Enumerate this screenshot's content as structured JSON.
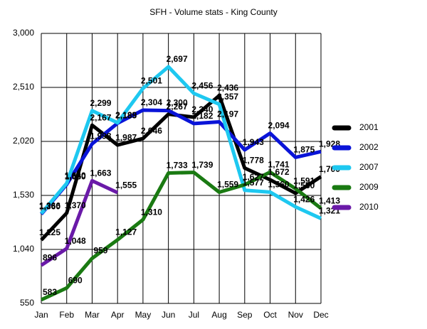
{
  "chart_data": {
    "type": "line",
    "title": "SFH - Volume stats - King County",
    "categories": [
      "Jan",
      "Feb",
      "Mar",
      "Apr",
      "May",
      "Jun",
      "Jul",
      "Aug",
      "Sep",
      "Oct",
      "Nov",
      "Dec"
    ],
    "ylim": [
      550,
      3000
    ],
    "yticks": [
      550,
      {
        "value": 1040,
        "label": "1,040"
      },
      {
        "value": 1530,
        "label": "1,530"
      },
      {
        "value": 2020,
        "label": "2,020"
      },
      {
        "value": 2510,
        "label": "2,510"
      },
      {
        "value": 3000,
        "label": "3,000"
      }
    ],
    "grid": true,
    "legend": "right",
    "series": [
      {
        "name": "2001",
        "color": "#000000",
        "values": [
          1125,
          1370,
          2167,
          1987,
          2046,
          2267,
          2240,
          2436,
          1778,
          1672,
          1550,
          1700
        ],
        "value_labels": [
          "1,125",
          "1,370",
          "2,167",
          "1,987",
          "2,046",
          "2,267",
          "2,240",
          "2,436",
          "1,778",
          "1,672",
          "1,550",
          "1,700"
        ]
      },
      {
        "name": "2002",
        "color": "#0a14d8",
        "values": [
          1360,
          1630,
          1998,
          2185,
          2304,
          2300,
          2182,
          2197,
          1943,
          2094,
          1875,
          1928
        ],
        "value_labels": [
          "1,360",
          "1,630",
          "1,998",
          "2,185",
          "2,304",
          "2,300",
          "2,182",
          "2,197",
          "1,943",
          "2,094",
          "1,875",
          "1,928"
        ]
      },
      {
        "name": "2007",
        "color": "#1ec8f0",
        "values": [
          1366,
          1640,
          2299,
          2189,
          2501,
          2697,
          2456,
          2357,
          1577,
          1560,
          1426,
          1321
        ],
        "value_labels": [
          "1,366",
          "1,640",
          "2,299",
          "2,189",
          "2,501",
          "2,697",
          "2,456",
          "2,357",
          "1,577",
          "1,560",
          "1,426",
          "1,321"
        ]
      },
      {
        "name": "2009",
        "color": "#1a7a12",
        "values": [
          583,
          690,
          959,
          1127,
          1310,
          1733,
          1739,
          1559,
          1627,
          1741,
          1591,
          1413
        ],
        "value_labels": [
          "583",
          "690",
          "959",
          "1,127",
          "1,310",
          "1,733",
          "1,739",
          "1,559",
          "1,627",
          "1,741",
          "1,591",
          "1,413"
        ]
      },
      {
        "name": "2010",
        "color": "#6a1aa8",
        "values": [
          896,
          1048,
          1663,
          1555,
          null,
          null,
          null,
          null,
          null,
          null,
          null,
          null
        ],
        "value_labels": [
          "896",
          "1,048",
          "1,663",
          "1,555",
          null,
          null,
          null,
          null,
          null,
          null,
          null,
          null
        ]
      }
    ]
  }
}
